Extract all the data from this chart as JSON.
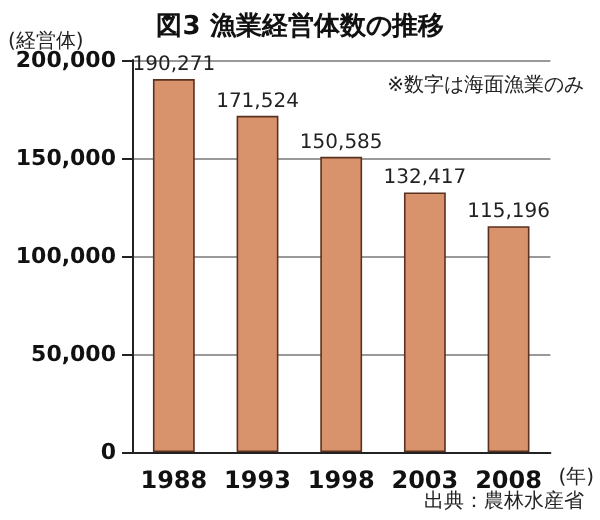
{
  "chart_data": {
    "type": "bar",
    "title": "図3 漁業経営体数の推移",
    "ylabel": "(経営体)",
    "xlabel": "(年)",
    "categories": [
      "1988",
      "1993",
      "1998",
      "2003",
      "2008"
    ],
    "values": [
      190271,
      171524,
      150585,
      132417,
      115196
    ],
    "value_labels": [
      "190,271",
      "171,524",
      "150,585",
      "132,417",
      "115,196"
    ],
    "color": "#d9936c",
    "ylim": [
      0,
      200000
    ],
    "yticks": [
      {
        "value": 0,
        "label": "0"
      },
      {
        "value": 50000,
        "label": "50,000"
      },
      {
        "value": 100000,
        "label": "100,000"
      },
      {
        "value": 150000,
        "label": "150,000"
      },
      {
        "value": 200000,
        "label": "200,000"
      }
    ],
    "grid": "y",
    "annotations": [
      "※数字は海面漁業のみ",
      "出典：農林水産省"
    ]
  }
}
